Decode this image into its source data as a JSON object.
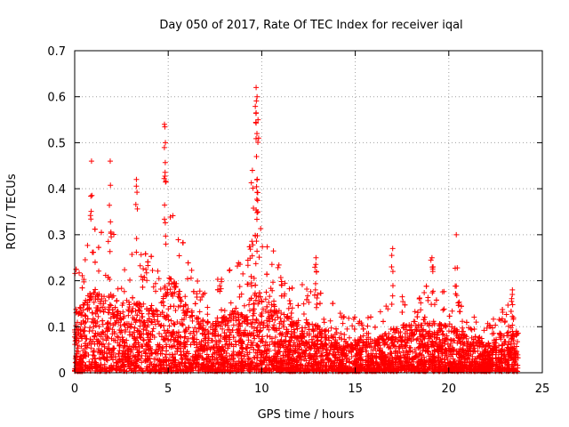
{
  "chart_data": {
    "type": "scatter",
    "title": "Day 050 of 2017, Rate Of TEC Index for receiver iqal",
    "xlabel": "GPS time / hours",
    "ylabel": "ROTI / TECUs",
    "xlim": [
      0,
      25
    ],
    "ylim": [
      0,
      0.7
    ],
    "x_ticks": [
      "0",
      "5",
      "10",
      "15",
      "20",
      "25"
    ],
    "y_ticks": [
      "0",
      "0.1",
      "0.2",
      "0.3",
      "0.4",
      "0.5",
      "0.6",
      "0.7"
    ],
    "x_tick_values": [
      0,
      5,
      10,
      15,
      20,
      25
    ],
    "y_tick_values": [
      0,
      0.1,
      0.2,
      0.3,
      0.4,
      0.5,
      0.6,
      0.7
    ],
    "grid": true,
    "marker": "+",
    "point_color": "#ff0000",
    "data_range_hours": [
      0,
      23.7
    ],
    "envelope": {
      "x": [
        0,
        0.5,
        1.0,
        1.5,
        2.0,
        2.5,
        3.0,
        3.5,
        4.0,
        4.5,
        4.9,
        5.3,
        6.0,
        7.0,
        8.0,
        9.0,
        9.6,
        10.0,
        11.0,
        12.0,
        13.0,
        14.0,
        15.0,
        16.0,
        17.0,
        18.0,
        19.0,
        20.0,
        21.0,
        22.0,
        23.0,
        23.7
      ],
      "typical_max": [
        0.13,
        0.15,
        0.18,
        0.17,
        0.17,
        0.16,
        0.15,
        0.15,
        0.15,
        0.14,
        0.21,
        0.2,
        0.14,
        0.11,
        0.12,
        0.14,
        0.17,
        0.18,
        0.13,
        0.11,
        0.1,
        0.08,
        0.07,
        0.07,
        0.09,
        0.11,
        0.11,
        0.1,
        0.08,
        0.06,
        0.08,
        0.1
      ]
    },
    "peaks": [
      {
        "x": 0.9,
        "y": 0.46
      },
      {
        "x": 1.9,
        "y": 0.46
      },
      {
        "x": 3.3,
        "y": 0.42
      },
      {
        "x": 4.8,
        "y": 0.54
      },
      {
        "x": 4.85,
        "y": 0.5
      },
      {
        "x": 9.5,
        "y": 0.44
      },
      {
        "x": 9.7,
        "y": 0.62
      },
      {
        "x": 9.75,
        "y": 0.6
      },
      {
        "x": 9.8,
        "y": 0.55
      },
      {
        "x": 9.72,
        "y": 0.47
      },
      {
        "x": 12.9,
        "y": 0.25
      },
      {
        "x": 17.0,
        "y": 0.27
      },
      {
        "x": 19.1,
        "y": 0.25
      },
      {
        "x": 20.4,
        "y": 0.3
      },
      {
        "x": 23.4,
        "y": 0.18
      }
    ]
  }
}
